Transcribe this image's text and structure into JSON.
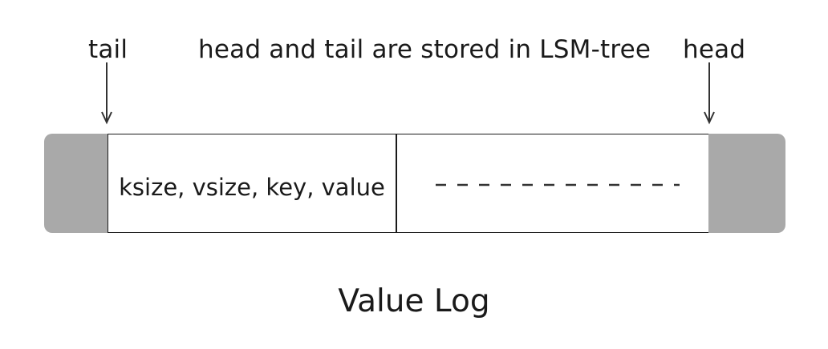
{
  "labels": {
    "tail": "tail",
    "note": "head and tail are stored in LSM-tree",
    "head": "head"
  },
  "log": {
    "entry": "ksize, vsize, key, value",
    "remainder": "- - - - - - - - - - - -"
  },
  "caption": "Value Log",
  "colors": {
    "cap_fill": "#a9a9a9",
    "stroke": "#1a1a1a",
    "cell_fill": "#ffffff"
  }
}
